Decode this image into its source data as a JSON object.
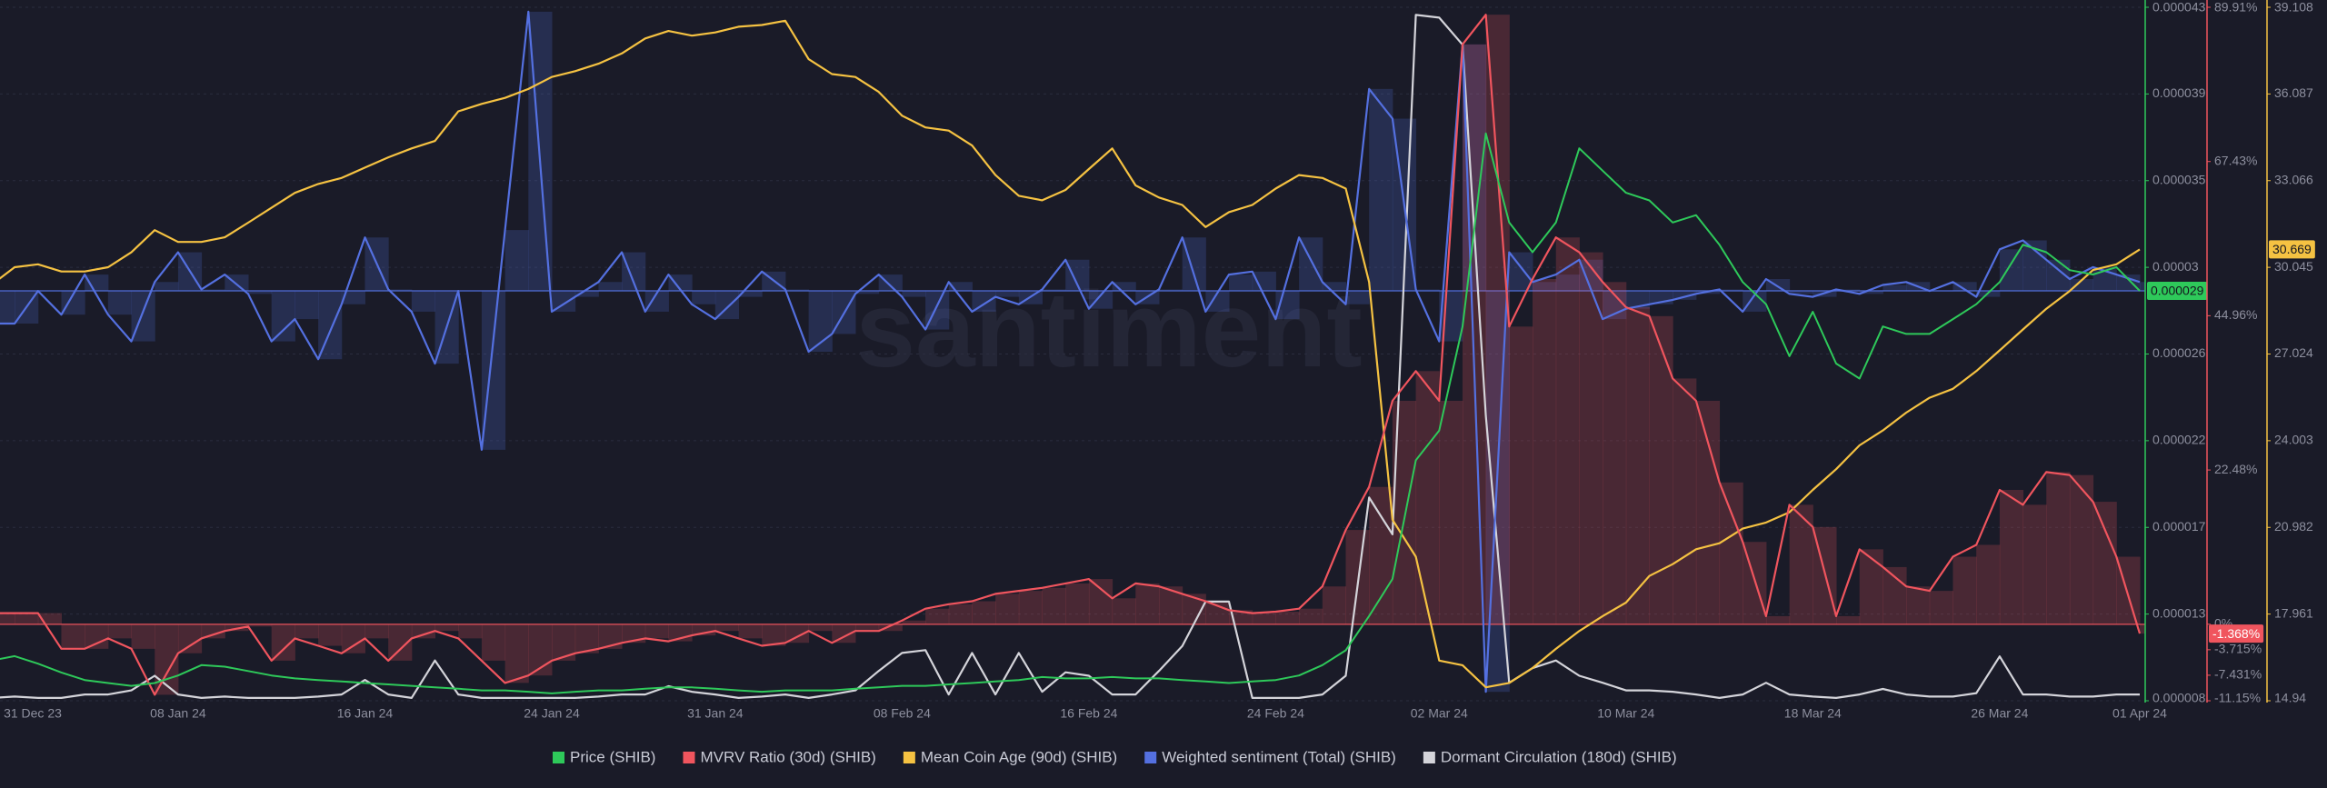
{
  "chart_data": {
    "type": "line",
    "watermark": "santiment",
    "grid": true,
    "categories": [
      "31 Dec 23",
      null,
      null,
      null,
      null,
      null,
      null,
      null,
      "08 Jan 24",
      null,
      null,
      null,
      null,
      null,
      null,
      null,
      "16 Jan 24",
      null,
      null,
      null,
      null,
      null,
      null,
      null,
      "24 Jan 24",
      null,
      null,
      null,
      null,
      null,
      null,
      "31 Jan 24",
      null,
      null,
      null,
      null,
      null,
      null,
      null,
      "08 Feb 24",
      null,
      null,
      null,
      null,
      null,
      null,
      null,
      "16 Feb 24",
      null,
      null,
      null,
      null,
      null,
      null,
      null,
      "24 Feb 24",
      null,
      null,
      null,
      null,
      null,
      null,
      "02 Mar 24",
      null,
      null,
      null,
      null,
      null,
      null,
      null,
      "10 Mar 24",
      null,
      null,
      null,
      null,
      null,
      null,
      null,
      "18 Mar 24",
      null,
      null,
      null,
      null,
      null,
      null,
      null,
      "26 Mar 24",
      null,
      null,
      null,
      null,
      null,
      "01 Apr 24"
    ],
    "series": [
      {
        "name": "Price (SHIB)",
        "color": "#2ec95a",
        "ylim": [
          8.48e-06,
          4.328e-05
        ],
        "yticks": [
          {
            "value": 8.48e-06,
            "label": "0.000008"
          },
          {
            "value": 1.283e-05,
            "label": "0.000013"
          },
          {
            "value": 1.718e-05,
            "label": "0.000017"
          },
          {
            "value": 2.153e-05,
            "label": "0.000022"
          },
          {
            "value": 2.588e-05,
            "label": "0.000026"
          },
          {
            "value": 3.023e-05,
            "label": "0.00003"
          },
          {
            "value": 3.458e-05,
            "label": "0.000035"
          },
          {
            "value": 3.893e-05,
            "label": "0.000039"
          },
          {
            "value": 4.328e-05,
            "label": "0.000043"
          }
        ],
        "values": [
          1.049e-05,
          1.072e-05,
          1.034e-05,
          9.9e-06,
          9.52e-06,
          9.37e-06,
          9.23e-06,
          9.37e-06,
          9.75e-06,
          1.027e-05,
          1.019e-05,
          9.97e-06,
          9.75e-06,
          9.6e-06,
          9.52e-06,
          9.45e-06,
          9.37e-06,
          9.3e-06,
          9.23e-06,
          9.15e-06,
          9.08e-06,
          9e-06,
          9e-06,
          8.93e-06,
          8.85e-06,
          8.93e-06,
          9e-06,
          9e-06,
          9.08e-06,
          9.15e-06,
          9.15e-06,
          9.08e-06,
          9e-06,
          8.93e-06,
          9e-06,
          9e-06,
          9e-06,
          9.08e-06,
          9.15e-06,
          9.23e-06,
          9.23e-06,
          9.3e-06,
          9.37e-06,
          9.45e-06,
          9.52e-06,
          9.67e-06,
          9.6e-06,
          9.6e-06,
          9.67e-06,
          9.6e-06,
          9.6e-06,
          9.52e-06,
          9.45e-06,
          9.37e-06,
          9.45e-06,
          9.52e-06,
          9.75e-06,
          1.027e-05,
          1.101e-05,
          1.273e-05,
          1.459e-05,
          2.055e-05,
          2.204e-05,
          2.726e-05,
          3.695e-05,
          3.248e-05,
          3.099e-05,
          3.248e-05,
          3.62e-05,
          3.508e-05,
          3.397e-05,
          3.359e-05,
          3.248e-05,
          3.285e-05,
          3.136e-05,
          2.949e-05,
          2.838e-05,
          2.577e-05,
          2.8e-05,
          2.54e-05,
          2.465e-05,
          2.726e-05,
          2.689e-05,
          2.689e-05,
          2.763e-05,
          2.838e-05,
          2.949e-05,
          3.136e-05,
          3.099e-05,
          3.009e-05,
          2.987e-05,
          3.024e-05,
          2.905e-05
        ],
        "value_labels": [
          null,
          null,
          null,
          null,
          null,
          null,
          null,
          null,
          null,
          null,
          null,
          null,
          null,
          null,
          null,
          null,
          null,
          null,
          null,
          null,
          null,
          null,
          null,
          null,
          null,
          null,
          null,
          null,
          null,
          null,
          null,
          null,
          null,
          null,
          null,
          null,
          null,
          null,
          null,
          null,
          null,
          null,
          null,
          null,
          null,
          null,
          null,
          null,
          null,
          null,
          null,
          null,
          null,
          null,
          null,
          null,
          null,
          null,
          null,
          null,
          null,
          null,
          null,
          null,
          null,
          null,
          null,
          null,
          null,
          null,
          null,
          null,
          null,
          null,
          null,
          null,
          null,
          null,
          null,
          null,
          null,
          null,
          null,
          null,
          null,
          null,
          null,
          null,
          null,
          null,
          null,
          null,
          "0.000029"
        ]
      },
      {
        "name": "MVRV Ratio (30d) (SHIB)",
        "color": "#f0555e",
        "area": true,
        "ylim": [
          -11.15,
          89.91
        ],
        "yticks": [
          {
            "value": -11.15,
            "label": "-11.15%"
          },
          {
            "value": -7.431,
            "label": "-7.431%"
          },
          {
            "value": -3.715,
            "label": "-3.715%"
          },
          {
            "value": 0,
            "label": "0%"
          },
          {
            "value": 22.48,
            "label": "22.48%"
          },
          {
            "value": 44.96,
            "label": "44.96%"
          },
          {
            "value": 67.43,
            "label": "67.43%"
          },
          {
            "value": 89.91,
            "label": "89.91%"
          }
        ],
        "values": [
          1.62,
          1.62,
          1.62,
          -3.58,
          -3.58,
          -2.06,
          -3.58,
          -10.28,
          -4.23,
          -2.06,
          -0.98,
          -0.33,
          -5.31,
          -2.06,
          -3.14,
          -4.23,
          -2.06,
          -5.31,
          -2.06,
          -0.98,
          -2.06,
          -5.31,
          -8.55,
          -7.47,
          -5.31,
          -4.23,
          -3.58,
          -2.71,
          -2.06,
          -2.49,
          -1.63,
          -0.98,
          -2.06,
          -3.14,
          -2.71,
          -0.98,
          -2.71,
          -0.98,
          -0.98,
          0.54,
          2.27,
          2.92,
          3.35,
          4.43,
          4.86,
          5.3,
          5.95,
          6.59,
          3.78,
          5.95,
          5.51,
          4.43,
          3.35,
          2.05,
          1.62,
          1.83,
          2.27,
          5.51,
          13.74,
          20.01,
          32.56,
          36.89,
          32.56,
          84.5,
          88.83,
          43.38,
          50.31,
          56.37,
          54.2,
          49.87,
          46.2,
          44.9,
          35.81,
          32.56,
          20.66,
          12.0,
          1.18,
          17.41,
          14.17,
          1.18,
          10.92,
          8.33,
          5.51,
          4.86,
          9.84,
          11.57,
          19.58,
          17.41,
          22.18,
          21.74,
          17.85,
          9.84,
          -1.368
        ],
        "value_labels": [
          null,
          null,
          null,
          null,
          null,
          null,
          null,
          null,
          null,
          null,
          null,
          null,
          null,
          null,
          null,
          null,
          null,
          null,
          null,
          null,
          null,
          null,
          null,
          null,
          null,
          null,
          null,
          null,
          null,
          null,
          null,
          null,
          null,
          null,
          null,
          null,
          null,
          null,
          null,
          null,
          null,
          null,
          null,
          null,
          null,
          null,
          null,
          null,
          null,
          null,
          null,
          null,
          null,
          null,
          null,
          null,
          null,
          null,
          null,
          null,
          null,
          null,
          null,
          null,
          null,
          null,
          null,
          null,
          null,
          null,
          null,
          null,
          null,
          null,
          null,
          null,
          null,
          null,
          null,
          null,
          null,
          null,
          null,
          null,
          null,
          null,
          null,
          null,
          null,
          null,
          null,
          null,
          "-1.368%"
        ]
      },
      {
        "name": "Mean Coin Age (90d) (SHIB)",
        "color": "#f5c242",
        "ylim": [
          14.94,
          39.108
        ],
        "yticks": [
          14.94,
          17.961,
          20.982,
          24.003,
          27.024,
          30.045,
          33.066,
          36.087,
          39.108
        ],
        "values": [
          29.43,
          30.05,
          30.15,
          29.9,
          29.9,
          30.05,
          30.57,
          31.34,
          30.93,
          30.93,
          31.09,
          31.6,
          32.12,
          32.64,
          32.95,
          33.16,
          33.52,
          33.88,
          34.19,
          34.45,
          35.48,
          35.74,
          35.95,
          36.26,
          36.68,
          36.88,
          37.14,
          37.5,
          38.02,
          38.28,
          38.12,
          38.23,
          38.43,
          38.49,
          38.64,
          37.3,
          36.78,
          36.68,
          36.16,
          35.33,
          34.92,
          34.81,
          34.29,
          33.26,
          32.54,
          32.38,
          32.74,
          33.47,
          34.19,
          32.9,
          32.48,
          32.22,
          31.45,
          31.97,
          32.22,
          32.79,
          33.26,
          33.16,
          32.79,
          29.53,
          21.25,
          19.96,
          16.34,
          16.18,
          15.41,
          15.56,
          16.08,
          16.75,
          17.37,
          17.89,
          18.36,
          19.29,
          19.7,
          20.22,
          20.43,
          20.94,
          21.15,
          21.51,
          22.29,
          23.01,
          23.84,
          24.36,
          24.98,
          25.5,
          25.81,
          26.43,
          27.15,
          27.88,
          28.6,
          29.22,
          29.95,
          30.15,
          30.669
        ]
      },
      {
        "name": "Weighted sentiment (Total) (SHIB)",
        "color": "#5470e0",
        "area": true,
        "ylim": [
          -2.76,
          1.91
        ],
        "values": [
          -0.22,
          -0.22,
          0,
          -0.16,
          0.11,
          -0.16,
          -0.34,
          0.06,
          0.26,
          0.01,
          0.11,
          -0.02,
          -0.34,
          -0.19,
          -0.46,
          -0.09,
          0.36,
          0.01,
          -0.14,
          -0.49,
          0,
          -1.07,
          0.41,
          1.88,
          -0.14,
          -0.04,
          0.06,
          0.26,
          -0.14,
          0.11,
          -0.09,
          -0.19,
          -0.04,
          0.13,
          0.01,
          -0.41,
          -0.29,
          -0.02,
          0.11,
          -0.04,
          -0.26,
          0.06,
          -0.14,
          -0.04,
          -0.09,
          0.01,
          0.21,
          -0.12,
          0.06,
          -0.09,
          0.01,
          0.36,
          -0.14,
          0.11,
          0.13,
          -0.19,
          0.36,
          0.06,
          -0.09,
          1.36,
          1.16,
          0.01,
          -0.34,
          1.66,
          -2.7,
          0.26,
          0.06,
          0.11,
          0.21,
          -0.19,
          -0.12,
          -0.09,
          -0.06,
          -0.02,
          0.01,
          -0.14,
          0.08,
          -0.02,
          -0.04,
          0.01,
          -0.02,
          0.04,
          0.06,
          0,
          0.06,
          -0.04,
          0.28,
          0.34,
          0.21,
          0.08,
          0.16,
          0.11,
          0.06
        ]
      },
      {
        "name": "Dormant Circulation (180d) (SHIB)",
        "color": "#d4d4da",
        "ylim": [
          0,
          10
        ],
        "values": [
          0.04,
          0.06,
          0.04,
          0.04,
          0.09,
          0.09,
          0.15,
          0.36,
          0.09,
          0.04,
          0.06,
          0.04,
          0.04,
          0.04,
          0.06,
          0.09,
          0.3,
          0.09,
          0.04,
          0.58,
          0.09,
          0.04,
          0.04,
          0.04,
          0.04,
          0.04,
          0.06,
          0.09,
          0.09,
          0.21,
          0.13,
          0.09,
          0.04,
          0.06,
          0.09,
          0.04,
          0.09,
          0.15,
          0.43,
          0.69,
          0.73,
          0.09,
          0.69,
          0.09,
          0.69,
          0.13,
          0.41,
          0.36,
          0.09,
          0.09,
          0.43,
          0.79,
          1.43,
          1.43,
          0.04,
          0.04,
          0.04,
          0.09,
          0.36,
          2.93,
          2.4,
          9.89,
          9.85,
          9.46,
          4.11,
          0.26,
          0.47,
          0.58,
          0.36,
          0.26,
          0.15,
          0.15,
          0.13,
          0.09,
          0.04,
          0.09,
          0.26,
          0.09,
          0.06,
          0.04,
          0.09,
          0.17,
          0.09,
          0.06,
          0.06,
          0.11,
          0.64,
          0.09,
          0.09,
          0.06,
          0.06,
          0.09,
          0.09
        ]
      }
    ]
  }
}
